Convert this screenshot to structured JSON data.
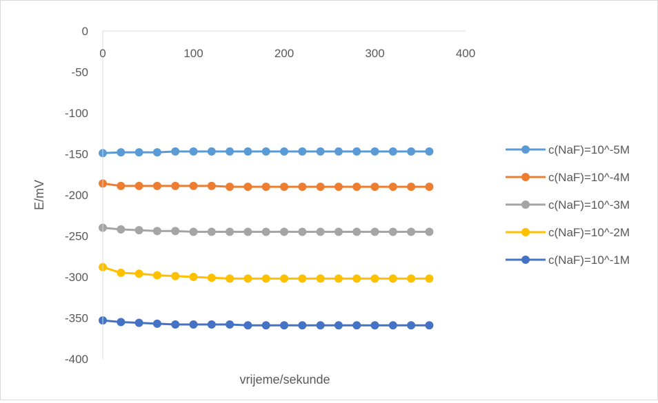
{
  "chart_data": {
    "type": "line",
    "title": "",
    "xlabel": "vrijeme/sekunde",
    "ylabel": "E/mV",
    "xlim": [
      0,
      400
    ],
    "ylim": [
      -400,
      0
    ],
    "x_ticks": [
      "0",
      "100",
      "200",
      "300",
      "400"
    ],
    "y_ticks": [
      "0",
      "-50",
      "-100",
      "-150",
      "-200",
      "-250",
      "-300",
      "-350",
      "-400"
    ],
    "grid": false,
    "legend_position": "right",
    "x": [
      0,
      20,
      40,
      60,
      80,
      100,
      120,
      140,
      160,
      180,
      200,
      220,
      240,
      260,
      280,
      300,
      320,
      340,
      360
    ],
    "series": [
      {
        "name": "c(NaF)=10^-5M",
        "color": "#5B9BD5",
        "values": [
          -149,
          -148,
          -148,
          -148,
          -147,
          -147,
          -147,
          -147,
          -147,
          -147,
          -147,
          -147,
          -147,
          -147,
          -147,
          -147,
          -147,
          -147,
          -147
        ]
      },
      {
        "name": "c(NaF)=10^-4M",
        "color": "#ED7D31",
        "values": [
          -186,
          -189,
          -189,
          -189,
          -189,
          -189,
          -189,
          -190,
          -190,
          -190,
          -190,
          -190,
          -190,
          -190,
          -190,
          -190,
          -190,
          -190,
          -190
        ]
      },
      {
        "name": "c(NaF)=10^-3M",
        "color": "#A5A5A5",
        "values": [
          -240,
          -242,
          -243,
          -244,
          -244,
          -245,
          -245,
          -245,
          -245,
          -245,
          -245,
          -245,
          -245,
          -245,
          -245,
          -245,
          -245,
          -245,
          -245
        ]
      },
      {
        "name": "c(NaF)=10^-2M",
        "color": "#FFC000",
        "values": [
          -288,
          -295,
          -296,
          -298,
          -299,
          -300,
          -301,
          -302,
          -302,
          -302,
          -302,
          -302,
          -302,
          -302,
          -302,
          -302,
          -302,
          -302,
          -302
        ]
      },
      {
        "name": "c(NaF)=10^-1M",
        "color": "#4472C4",
        "values": [
          -353,
          -355,
          -356,
          -357,
          -358,
          -358,
          -358,
          -358,
          -359,
          -359,
          -359,
          -359,
          -359,
          -359,
          -359,
          -359,
          -359,
          -359,
          -359
        ]
      }
    ]
  }
}
